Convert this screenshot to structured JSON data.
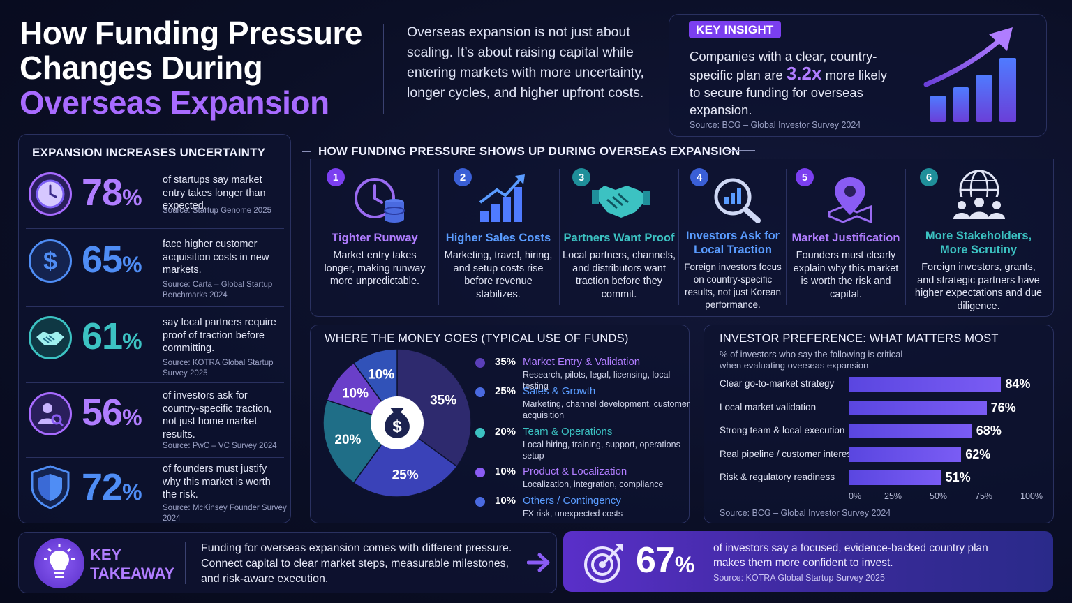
{
  "header": {
    "title_line1": "How Funding Pressure",
    "title_line2": "Changes During",
    "title_line3": "Overseas Expansion",
    "intro_line1": "Overseas expansion is not just about",
    "intro_line2": "scaling. It’s about raising capital while",
    "intro_line3": "entering markets with more uncertainty,",
    "intro_line4": "longer cycles, and higher upfront costs."
  },
  "key_insight": {
    "tag": "KEY INSIGHT",
    "text_before": "Companies with a clear, country-specific plan are",
    "highlight": "3.2x",
    "text_after": "more likely to secure funding for overseas expansion.",
    "source": "Source: BCG – Global Investor Survey 2024"
  },
  "uncertainty": {
    "title": "EXPANSION INCREASES UNCERTAINTY",
    "stats": [
      {
        "icon": "clock-icon",
        "value": "78",
        "unit": "%",
        "color": "#b07dff",
        "desc": "of startups say market entry takes longer than expected.",
        "source": "Source: Startup Genome 2025"
      },
      {
        "icon": "dollar-icon",
        "value": "65",
        "unit": "%",
        "color": "#4f8df5",
        "desc": "face higher customer acquisition costs in new markets.",
        "source": "Source: Carta – Global Startup Benchmarks 2024"
      },
      {
        "icon": "handshake-icon",
        "value": "61",
        "unit": "%",
        "color": "#3cc2c2",
        "desc": "say local partners require proof of traction before committing.",
        "source": "Source: KOTRA Global Startup Survey 2025"
      },
      {
        "icon": "user-search-icon",
        "value": "56",
        "unit": "%",
        "color": "#a878ff",
        "desc": "of investors ask for country-specific traction, not just home market results.",
        "source": "Source: PwC – VC Survey 2024"
      },
      {
        "icon": "shield-icon",
        "value": "72",
        "unit": "%",
        "color": "#4f8df5",
        "desc": "of founders must justify why this market is worth the risk.",
        "source": "Source: McKinsey Founder Survey 2024"
      }
    ]
  },
  "pressure": {
    "title": "HOW FUNDING PRESSURE SHOWS UP DURING OVERSEAS EXPANSION",
    "steps": [
      {
        "num": "1",
        "icon": "clock-coins-icon",
        "title": "Tighter Runway",
        "desc": "Market entry takes longer, making runway more unpredictable.",
        "color": "#b07dff",
        "badge": "#7b3ff0"
      },
      {
        "num": "2",
        "icon": "growth-chart-icon",
        "title": "Higher Sales Costs",
        "desc": "Marketing, travel, hiring, and setup costs rise before revenue stabilizes.",
        "color": "#5a9cff",
        "badge": "#3a5fd6"
      },
      {
        "num": "3",
        "icon": "handshake-icon",
        "title": "Partners Want Proof",
        "desc": "Local partners, channels, and distributors want traction before they commit.",
        "color": "#3cc2c2",
        "badge": "#1f8f9a"
      },
      {
        "num": "4",
        "icon": "magnifier-chart-icon",
        "title": "Investors Ask for Local Traction",
        "desc": "Foreign investors focus on country-specific results, not just Korean performance.",
        "color": "#5a9cff",
        "badge": "#3a5fd6"
      },
      {
        "num": "5",
        "icon": "map-pin-icon",
        "title": "Market Justification",
        "desc": "Founders must clearly explain why this market is worth the risk and capital.",
        "color": "#b07dff",
        "badge": "#7b3ff0"
      },
      {
        "num": "6",
        "icon": "globe-people-icon",
        "title": "More Stakeholders, More Scrutiny",
        "desc": "Foreign investors, grants, and strategic partners have higher expectations and due diligence.",
        "color": "#3cc2c2",
        "badge": "#1f8f9a"
      }
    ]
  },
  "money": {
    "title": "WHERE THE MONEY GOES (TYPICAL USE OF FUNDS)",
    "center_icon": "money-bag-icon"
  },
  "investor_pref": {
    "title": "INVESTOR PREFERENCE: WHAT MATTERS MOST",
    "subtitle_line1": "% of investors who say the following is critical",
    "subtitle_line2": "when evaluating overseas expansion",
    "source": "Source: BCG – Global Investor Survey 2024"
  },
  "chart_data": [
    {
      "type": "pie",
      "title": "WHERE THE MONEY GOES (TYPICAL USE OF FUNDS)",
      "slices": [
        {
          "label": "Market Entry & Validation",
          "value": 35,
          "display": "35%",
          "detail": "Research, pilots, legal, licensing, local testing",
          "color": "#2e2a6e"
        },
        {
          "label": "Sales & Growth",
          "value": 25,
          "display": "25%",
          "detail": "Marketing, channel development, customer acquisition",
          "color": "#3a42b8"
        },
        {
          "label": "Team & Operations",
          "value": 20,
          "display": "20%",
          "detail": "Local hiring, training, support, operations setup",
          "color": "#1f6e87"
        },
        {
          "label": "Product & Localization",
          "value": 10,
          "display": "10%",
          "detail": "Localization, integration, compliance",
          "color": "#6a3fc9"
        },
        {
          "label": "Others / Contingency",
          "value": 10,
          "display": "10%",
          "detail": "FX risk, unexpected costs",
          "color": "#3152b8"
        }
      ]
    },
    {
      "type": "bar",
      "orientation": "horizontal",
      "title": "INVESTOR PREFERENCE: WHAT MATTERS MOST",
      "categories": [
        "Clear go-to-market strategy",
        "Local market validation",
        "Strong team & local execution",
        "Real pipeline / customer interest",
        "Risk & regulatory readiness"
      ],
      "values": [
        84,
        76,
        68,
        62,
        51
      ],
      "value_labels": [
        "84%",
        "76%",
        "68%",
        "62%",
        "51%"
      ],
      "xlim": [
        0,
        100
      ],
      "ticks": [
        "0%",
        "25%",
        "50%",
        "75%",
        "100%"
      ]
    }
  ],
  "takeaway": {
    "icon": "lightbulb-icon",
    "label_line1": "KEY",
    "label_line2": "TAKEAWAY",
    "text_line1": "Funding for overseas expansion comes with different pressure.",
    "text_line2": "Connect capital to clear market steps, measurable milestones,",
    "text_line3": "and risk-aware execution.",
    "arrow_icon": "arrow-right-icon"
  },
  "callout": {
    "icon": "target-icon",
    "value": "67",
    "unit": "%",
    "text_line1": "of investors say a focused, evidence-backed country plan",
    "text_line2": "makes them more confident to invest.",
    "source": "Source: KOTRA Global Startup Survey 2025"
  }
}
